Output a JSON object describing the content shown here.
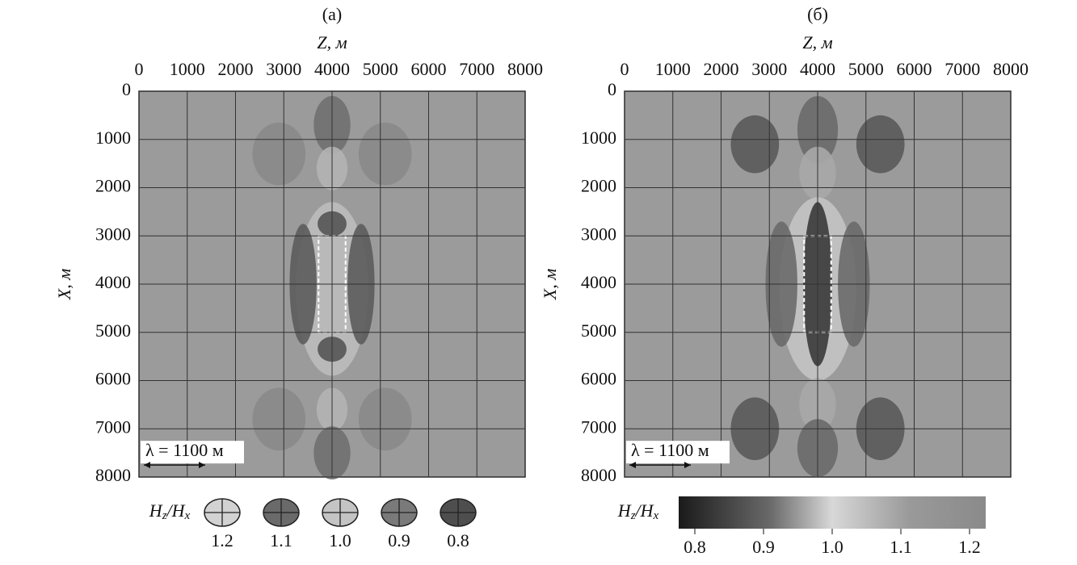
{
  "figure": {
    "panels": [
      {
        "label": "(а)",
        "xlabel": "Z, м",
        "ylabel": "X, м",
        "xlim": [
          0,
          8000
        ],
        "ylim": [
          0,
          8000
        ],
        "xticks": [
          0,
          1000,
          2000,
          3000,
          4000,
          5000,
          6000,
          7000,
          8000
        ],
        "yticks": [
          0,
          1000,
          2000,
          3000,
          4000,
          5000,
          6000,
          7000,
          8000
        ],
        "scale_note": "λ = 1100 м",
        "legend_title": [
          "H",
          "z",
          "/H",
          "x"
        ],
        "legend_items": [
          {
            "label": "1.2",
            "color": "#d2d2d2"
          },
          {
            "label": "1.1",
            "color": "#6a6a6a"
          },
          {
            "label": "1.0",
            "color": "#c4c4c4"
          },
          {
            "label": "0.9",
            "color": "#7a7a7a"
          },
          {
            "label": "0.8",
            "color": "#4e4e4e"
          }
        ]
      },
      {
        "label": "(б)",
        "xlabel": "Z, м",
        "ylabel": "X, м",
        "xlim": [
          0,
          8000
        ],
        "ylim": [
          0,
          8000
        ],
        "xticks": [
          0,
          1000,
          2000,
          3000,
          4000,
          5000,
          6000,
          7000,
          8000
        ],
        "yticks": [
          0,
          1000,
          2000,
          3000,
          4000,
          5000,
          6000,
          7000,
          8000
        ],
        "scale_note": "λ = 1100 м",
        "legend_title": [
          "H",
          "z",
          "/H",
          "x"
        ],
        "colorbar_lim": [
          0.8,
          1.2
        ],
        "colorbar_ticks": [
          0.8,
          0.9,
          {
            "value": 1,
            "label": "1.0"
          },
          1.1,
          1.2
        ]
      }
    ]
  }
}
